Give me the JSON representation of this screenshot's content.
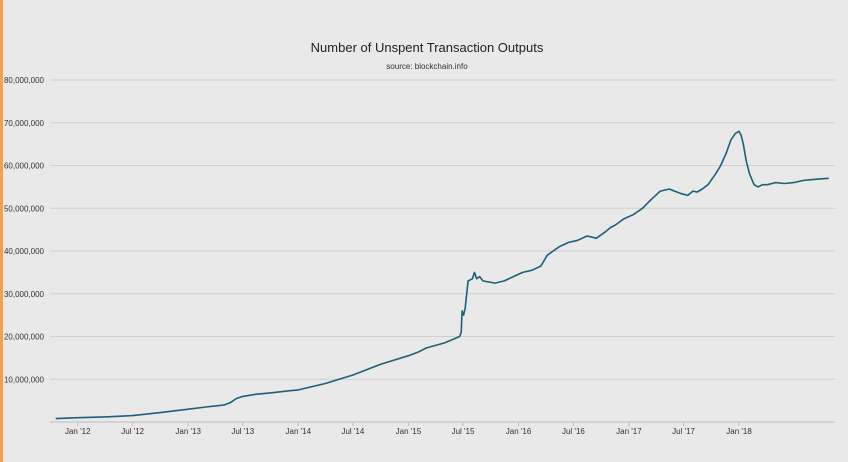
{
  "chart_data": {
    "type": "line",
    "title": "Number of Unspent Transaction Outputs",
    "subtitle": "source: blockchain.info",
    "xlabel": "",
    "ylabel": "",
    "ylim": [
      0,
      80000000
    ],
    "yticks": [
      10000000,
      20000000,
      30000000,
      40000000,
      50000000,
      60000000,
      70000000,
      80000000
    ],
    "ytick_labels": [
      "10,000,000",
      "20,000,000",
      "30,000,000",
      "40,000,000",
      "50,000,000",
      "60,000,000",
      "70,000,000",
      "80,000,000"
    ],
    "xlim": [
      "2011-10-01",
      "2018-11-15"
    ],
    "xticks": [
      "2012-01-01",
      "2012-07-01",
      "2013-01-01",
      "2013-07-01",
      "2014-01-01",
      "2014-07-01",
      "2015-01-01",
      "2015-07-01",
      "2016-01-01",
      "2016-07-01",
      "2017-01-01",
      "2017-07-01",
      "2018-01-01"
    ],
    "xtick_labels": [
      "Jan '12",
      "Jul '12",
      "Jan '13",
      "Jul '13",
      "Jan '14",
      "Jul '14",
      "Jan '15",
      "Jul '15",
      "Jan '16",
      "Jul '16",
      "Jan '17",
      "Jul '17",
      "Jan '18"
    ],
    "grid": true,
    "line_color": "#1f5f7a",
    "series": [
      {
        "x": [
          "2011-10-20",
          "2012-01-01",
          "2012-04-01",
          "2012-07-01",
          "2012-10-01",
          "2013-01-01",
          "2013-03-01",
          "2013-05-01",
          "2013-05-20",
          "2013-06-10",
          "2013-07-01",
          "2013-08-15",
          "2013-10-01",
          "2013-12-01",
          "2014-01-01",
          "2014-04-01",
          "2014-07-01",
          "2014-10-01",
          "2015-01-01",
          "2015-02-01",
          "2015-03-01",
          "2015-05-01",
          "2015-06-20",
          "2015-06-25",
          "2015-06-28",
          "2015-07-03",
          "2015-07-08",
          "2015-07-18",
          "2015-08-01",
          "2015-08-08",
          "2015-08-15",
          "2015-08-25",
          "2015-09-05",
          "2015-10-15",
          "2015-11-15",
          "2015-12-15",
          "2016-01-15",
          "2016-02-15",
          "2016-03-15",
          "2016-04-05",
          "2016-04-25",
          "2016-05-15",
          "2016-06-15",
          "2016-07-15",
          "2016-08-15",
          "2016-09-15",
          "2016-10-15",
          "2016-11-01",
          "2016-11-15",
          "2016-12-15",
          "2017-01-15",
          "2017-02-15",
          "2017-03-15",
          "2017-04-15",
          "2017-05-15",
          "2017-06-01",
          "2017-06-20",
          "2017-07-15",
          "2017-08-01",
          "2017-08-15",
          "2017-09-01",
          "2017-09-20",
          "2017-10-15",
          "2017-11-01",
          "2017-11-20",
          "2017-12-05",
          "2017-12-20",
          "2018-01-01",
          "2018-01-08",
          "2018-01-15",
          "2018-01-25",
          "2018-02-05",
          "2018-02-20",
          "2018-03-05",
          "2018-03-20",
          "2018-04-05",
          "2018-05-01",
          "2018-06-01",
          "2018-07-01",
          "2018-08-01",
          "2018-09-01",
          "2018-10-01",
          "2018-10-25"
        ],
        "y": [
          800000,
          1000000,
          1200000,
          1500000,
          2200000,
          3000000,
          3500000,
          4000000,
          4500000,
          5500000,
          6000000,
          6500000,
          6800000,
          7300000,
          7500000,
          9000000,
          11000000,
          13500000,
          15500000,
          16300000,
          17300000,
          18500000,
          20000000,
          21000000,
          26000000,
          25000000,
          26500000,
          33000000,
          33500000,
          35000000,
          33500000,
          34000000,
          33000000,
          32500000,
          33000000,
          34000000,
          35000000,
          35500000,
          36500000,
          39000000,
          40000000,
          41000000,
          42000000,
          42500000,
          43500000,
          43000000,
          44500000,
          45500000,
          46000000,
          47500000,
          48500000,
          50000000,
          52000000,
          54000000,
          54500000,
          54000000,
          53500000,
          53000000,
          54000000,
          53800000,
          54500000,
          55500000,
          58000000,
          60000000,
          63000000,
          66000000,
          67500000,
          68000000,
          67000000,
          65000000,
          61000000,
          58000000,
          55500000,
          55000000,
          55500000,
          55500000,
          56000000,
          55800000,
          56000000,
          56500000,
          56700000,
          56900000,
          57000000
        ]
      }
    ]
  }
}
